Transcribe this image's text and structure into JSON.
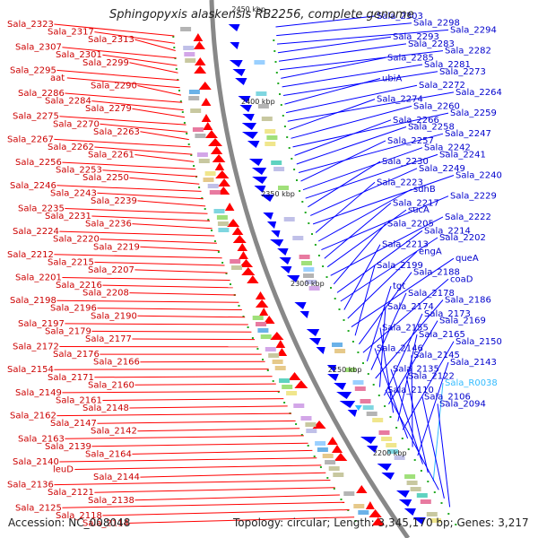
{
  "title": "Sphingopyxis alaskensis RB2256, complete genome",
  "footer": {
    "accession": "Accession: NC_008048",
    "topology": "Topology: circular; Length: 3,345,170 bp; Genes: 3,217"
  },
  "scale_labels": [
    "2450 kbp",
    "2400 kbp",
    "2350 kbp",
    "2300 kbp",
    "2250 kbp",
    "2200 kbp"
  ],
  "colors": {
    "forward": "#ff0000",
    "reverse": "#0000ff",
    "rna": "#33bbff",
    "backbone": "#888888",
    "tick": "#22aa22"
  },
  "labels_left": [
    "Sala_2323",
    "Sala_2317",
    "Sala_2313",
    "Sala_2307",
    "Sala_2301",
    "Sala_2299",
    "Sala_2295",
    "aat",
    "Sala_2290",
    "Sala_2286",
    "Sala_2284",
    "Sala_2279",
    "Sala_2275",
    "Sala_2270",
    "Sala_2263",
    "Sala_2267",
    "Sala_2262",
    "Sala_2261",
    "Sala_2256",
    "Sala_2253",
    "Sala_2250",
    "Sala_2246",
    "Sala_2243",
    "Sala_2239",
    "Sala_2235",
    "Sala_2231",
    "Sala_2236",
    "Sala_2224",
    "Sala_2220",
    "Sala_2219",
    "Sala_2212",
    "Sala_2215",
    "Sala_2207",
    "Sala_2201",
    "Sala_2216",
    "Sala_2208",
    "Sala_2198",
    "Sala_2196",
    "Sala_2190",
    "Sala_2197",
    "Sala_2179",
    "Sala_2177",
    "Sala_2172",
    "Sala_2176",
    "Sala_2166",
    "Sala_2154",
    "Sala_2171",
    "Sala_2160",
    "Sala_2149",
    "Sala_2161",
    "Sala_2148",
    "Sala_2162",
    "Sala_2147",
    "Sala_2142",
    "Sala_2163",
    "Sala_2139",
    "Sala_2164",
    "Sala_2140",
    "leuD",
    "Sala_2144",
    "Sala_2136",
    "Sala_2121",
    "Sala_2138",
    "Sala_2125",
    "Sala_2118",
    "Sala_2114"
  ],
  "labels_right": [
    "Sala_2303",
    "Sala_2298",
    "Sala_2294",
    "Sala_2293",
    "Sala_2283",
    "Sala_2282",
    "Sala_2285",
    "Sala_2281",
    "Sala_2273",
    "ubiA",
    "Sala_2272",
    "Sala_2264",
    "Sala_2274",
    "Sala_2260",
    "Sala_2259",
    "Sala_2266",
    "Sala_2258",
    "Sala_2247",
    "Sala_2257",
    "Sala_2242",
    "Sala_2241",
    "Sala_2230",
    "Sala_2249",
    "Sala_2240",
    "Sala_2223",
    "sdhB",
    "Sala_2229",
    "Sala_2217",
    "sucA",
    "Sala_2222",
    "Sala_2205",
    "Sala_2214",
    "Sala_2202",
    "Sala_2213",
    "engA",
    "queA",
    "Sala_2199",
    "Sala_2188",
    "coaD",
    "tgt",
    "Sala_2178",
    "Sala_2186",
    "Sala_2174",
    "Sala_2173",
    "Sala_2169",
    "Sala_2155",
    "Sala_2165",
    "Sala_2150",
    "Sala_2146",
    "Sala_2145",
    "Sala_2143",
    "Sala_2135",
    "Sala_2122",
    "Sala_R0038",
    "Sala_2110",
    "Sala_2106",
    "Sala_2094"
  ]
}
